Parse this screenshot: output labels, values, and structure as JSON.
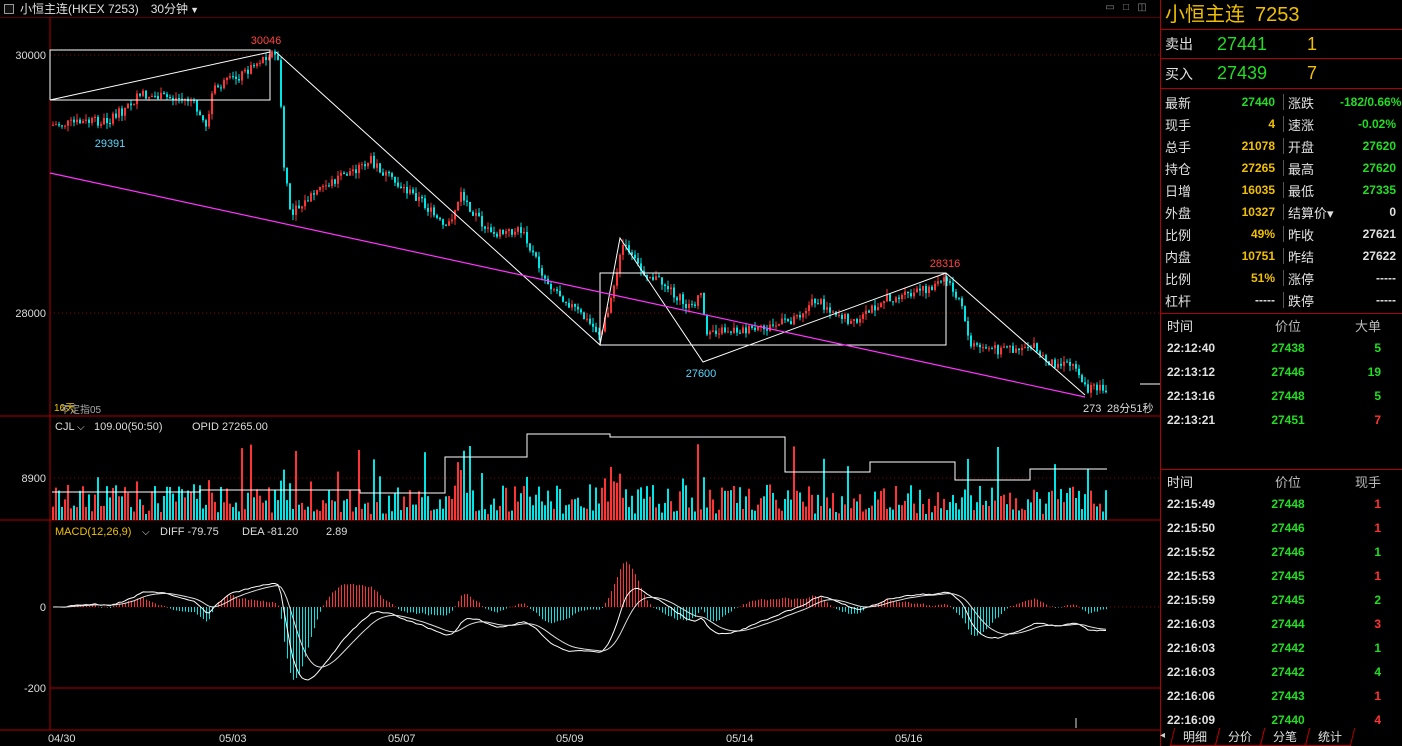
{
  "window": {
    "title": "小恒主连(HKEX 7253)",
    "period": "30分钟",
    "period_arrow": "▼"
  },
  "chart": {
    "price_labels": {
      "high": "30046",
      "low_left": "29391",
      "mid_low": "27600",
      "right_high": "28316",
      "last": "273"
    },
    "y_axis_price": [
      "30000",
      "28000"
    ],
    "y_axis_volume": [
      "8900"
    ],
    "y_axis_macd": [
      "0",
      "-200"
    ],
    "x_axis": [
      "04/30",
      "05/03",
      "05/07",
      "05/09",
      "05/14",
      "05/16"
    ],
    "countdown": "28分51秒",
    "indicator_label_a": "16天",
    "indicator_label_b": "不定指05",
    "cjl": {
      "name": "CJL",
      "value": "109.00(50:50)",
      "opid": "OPID 27265.00"
    },
    "macd": {
      "name": "MACD(12,26,9)",
      "diff": "DIFF -79.75",
      "dea": "DEA -81.20",
      "macd": "2.89"
    },
    "colors": {
      "up": "#ff3333",
      "down": "#00e5e5",
      "grid": "#b00000",
      "trend": "#ff33ff",
      "box": "#ffffff"
    }
  },
  "panel": {
    "name": "小恒主连",
    "code": "7253",
    "orderbook": [
      {
        "label": "卖出",
        "price": "27441",
        "qty": "1"
      },
      {
        "label": "买入",
        "price": "27439",
        "qty": "7"
      }
    ],
    "stats": [
      {
        "k1": "最新",
        "v1": "27440",
        "c1": "g",
        "k2": "涨跌",
        "v2": "-182/0.66%",
        "c2": "g"
      },
      {
        "k1": "现手",
        "v1": "4",
        "c1": "y",
        "k2": "速涨",
        "v2": "-0.02%",
        "c2": "g"
      },
      {
        "k1": "总手",
        "v1": "21078",
        "c1": "y",
        "k2": "开盘",
        "v2": "27620",
        "c2": "g"
      },
      {
        "k1": "持仓",
        "v1": "27265",
        "c1": "y",
        "k2": "最高",
        "v2": "27620",
        "c2": "g"
      },
      {
        "k1": "日增",
        "v1": "16035",
        "c1": "y",
        "k2": "最低",
        "v2": "27335",
        "c2": "g"
      },
      {
        "k1": "外盘",
        "v1": "10327",
        "c1": "y",
        "k2": "结算价▾",
        "v2": "0",
        "c2": "w"
      },
      {
        "k1": "比例",
        "v1": "49%",
        "c1": "y",
        "k2": "昨收",
        "v2": "27621",
        "c2": "w"
      },
      {
        "k1": "内盘",
        "v1": "10751",
        "c1": "y",
        "k2": "昨结",
        "v2": "27622",
        "c2": "w"
      },
      {
        "k1": "比例",
        "v1": "51%",
        "c1": "y",
        "k2": "涨停",
        "v2": "-----",
        "c2": "w"
      },
      {
        "k1": "杠杆",
        "v1": "-----",
        "c1": "w",
        "k2": "跌停",
        "v2": "-----",
        "c2": "w"
      }
    ],
    "big_orders": {
      "headers": [
        "时间",
        "价位",
        "大单"
      ],
      "rows": [
        {
          "time": "22:12:40",
          "price": "27438",
          "qty": "5",
          "color": "g"
        },
        {
          "time": "22:13:12",
          "price": "27446",
          "qty": "19",
          "color": "g"
        },
        {
          "time": "22:13:16",
          "price": "27448",
          "qty": "5",
          "color": "g"
        },
        {
          "time": "22:13:21",
          "price": "27451",
          "qty": "7",
          "color": "r"
        }
      ]
    },
    "ticks": {
      "headers": [
        "时间",
        "价位",
        "现手"
      ],
      "rows": [
        {
          "time": "22:15:49",
          "price": "27448",
          "qty": "1",
          "color": "r"
        },
        {
          "time": "22:15:50",
          "price": "27446",
          "qty": "1",
          "color": "r"
        },
        {
          "time": "22:15:52",
          "price": "27446",
          "qty": "1",
          "color": "g"
        },
        {
          "time": "22:15:53",
          "price": "27445",
          "qty": "1",
          "color": "r"
        },
        {
          "time": "22:15:59",
          "price": "27445",
          "qty": "2",
          "color": "g"
        },
        {
          "time": "22:16:03",
          "price": "27444",
          "qty": "3",
          "color": "r"
        },
        {
          "time": "22:16:03",
          "price": "27442",
          "qty": "1",
          "color": "g"
        },
        {
          "time": "22:16:03",
          "price": "27442",
          "qty": "4",
          "color": "g"
        },
        {
          "time": "22:16:06",
          "price": "27443",
          "qty": "1",
          "color": "r"
        },
        {
          "time": "22:16:09",
          "price": "27440",
          "qty": "4",
          "color": "r"
        }
      ]
    },
    "tabs": [
      "明细",
      "分价",
      "分笔",
      "统计"
    ]
  }
}
